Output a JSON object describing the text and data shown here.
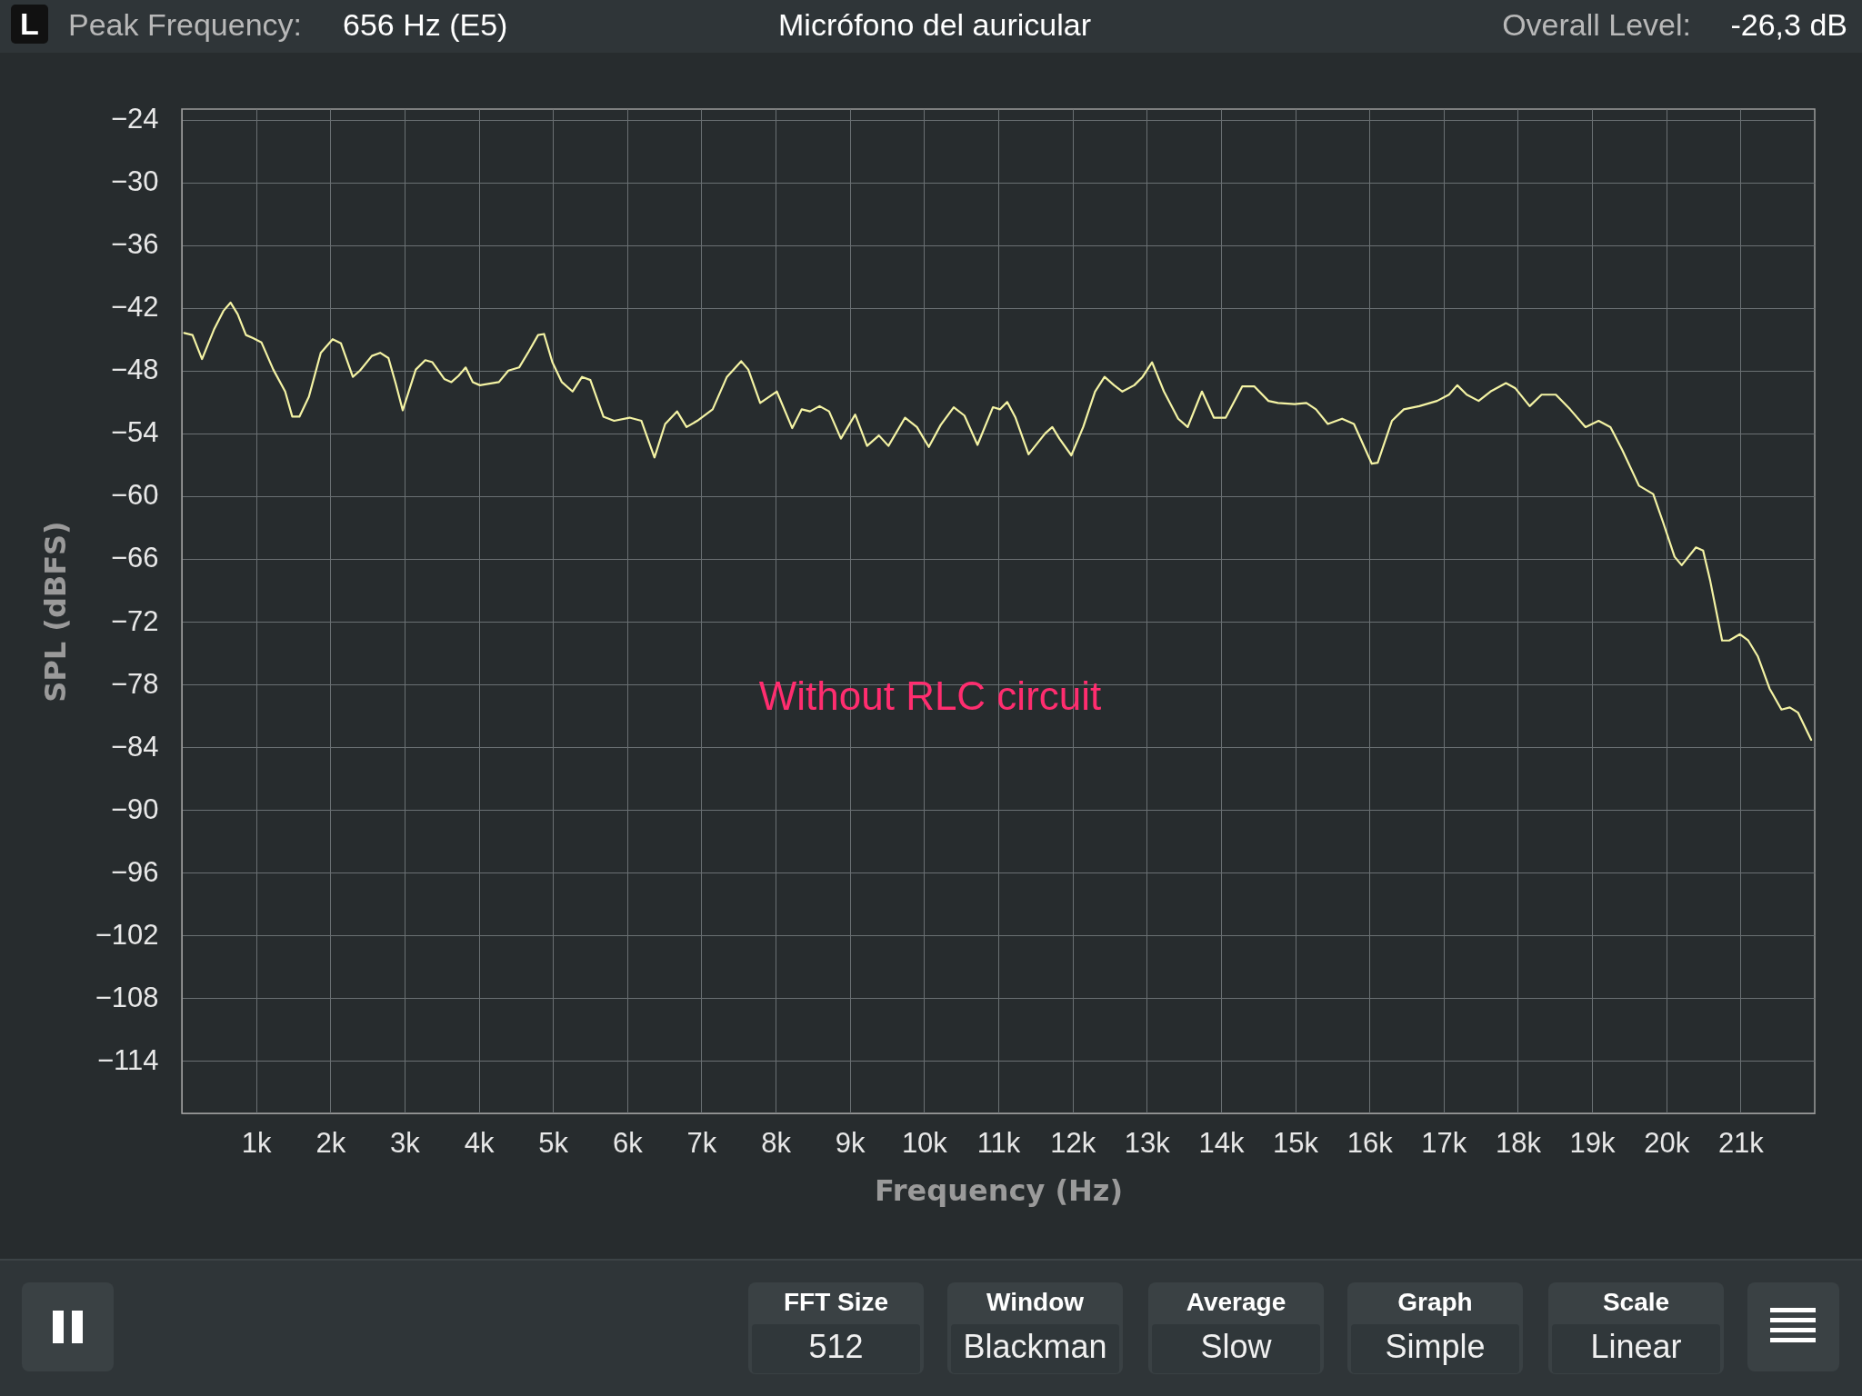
{
  "chart_data": {
    "type": "line",
    "title": "Micrófono del auricular",
    "xlabel": "Frequency (Hz)",
    "ylabel": "SPL (dBFS)",
    "annotations": [
      "L",
      "Peak Frequency:",
      "656 Hz (E5)",
      "Overall Level:",
      "-26,3 dB",
      "Without RLC circuit",
      "FFT Size",
      "512",
      "Window",
      "Blackman",
      "Average",
      "Slow",
      "Graph",
      "Simple",
      "Scale",
      "Linear"
    ],
    "x": [
      32,
      144,
      272,
      432,
      560,
      656,
      752,
      864,
      960,
      1072,
      1232,
      1392,
      1488,
      1584,
      1712,
      1872,
      2032,
      2144,
      2304,
      2400,
      2560,
      2672,
      2784,
      2880,
      2976,
      3152,
      3280,
      3376,
      3536,
      3632,
      3728,
      3824,
      3920,
      4016,
      4272,
      4400,
      4544,
      4672,
      4800,
      4880,
      4992,
      5120,
      5264,
      5392,
      5504,
      5680,
      5824,
      6032,
      6192,
      6368,
      6512,
      6672,
      6800,
      6944,
      7152,
      7344,
      7536,
      7632,
      7792,
      8016,
      8224,
      8352,
      8464,
      8592,
      8720,
      8880,
      9072,
      9232,
      9392,
      9520,
      9744,
      9904,
      10064,
      10224,
      10400,
      10544,
      10720,
      10928,
      11024,
      11120,
      11232,
      11408,
      11632,
      11728,
      11824,
      11984,
      12144,
      12304,
      12432,
      12560,
      12672,
      12832,
      12944,
      13072,
      13232,
      13424,
      13552,
      13744,
      13904,
      14064,
      14288,
      14448,
      14640,
      14768,
      14992,
      15152,
      15280,
      15440,
      15632,
      15792,
      16032,
      16112,
      16304,
      16464,
      16672,
      16912,
      17072,
      17184,
      17312,
      17472,
      17632,
      17840,
      17968,
      18160,
      18320,
      18512,
      18704,
      18912,
      19088,
      19248,
      19408,
      19632,
      19824,
      19952,
      20112,
      20208,
      20400,
      20496,
      20592,
      20752,
      20848,
      20992,
      21104,
      21232,
      21392,
      21552,
      21664,
      21776,
      21952
    ],
    "series": [
      {
        "color": "#f4f3a4",
        "values": [
          -44.4,
          -44.6,
          -46.9,
          -44.1,
          -42.3,
          -41.5,
          -42.6,
          -44.6,
          -44.9,
          -45.3,
          -47.9,
          -50.0,
          -52.4,
          -52.4,
          -50.5,
          -46.3,
          -45.0,
          -45.4,
          -48.6,
          -48.0,
          -46.6,
          -46.3,
          -46.8,
          -49.2,
          -51.8,
          -47.9,
          -47.0,
          -47.2,
          -48.8,
          -49.1,
          -48.5,
          -47.7,
          -49.1,
          -49.4,
          -49.1,
          -48.0,
          -47.7,
          -46.2,
          -44.6,
          -44.5,
          -47.2,
          -49.1,
          -50.0,
          -48.6,
          -48.9,
          -52.4,
          -52.8,
          -52.5,
          -52.8,
          -56.3,
          -53.1,
          -51.9,
          -53.4,
          -52.8,
          -51.7,
          -48.6,
          -47.1,
          -47.9,
          -51.1,
          -50.0,
          -53.5,
          -51.7,
          -51.9,
          -51.4,
          -51.9,
          -54.5,
          -52.2,
          -55.2,
          -54.2,
          -55.2,
          -52.5,
          -53.4,
          -55.3,
          -53.2,
          -51.5,
          -52.3,
          -55.1,
          -51.5,
          -51.7,
          -51.0,
          -52.5,
          -56.0,
          -54.0,
          -53.4,
          -54.5,
          -56.1,
          -53.4,
          -50.0,
          -48.6,
          -49.4,
          -50.0,
          -49.4,
          -48.6,
          -47.2,
          -50.0,
          -52.6,
          -53.4,
          -50.0,
          -52.5,
          -52.5,
          -49.5,
          -49.5,
          -50.9,
          -51.1,
          -51.2,
          -51.1,
          -51.7,
          -53.1,
          -52.6,
          -53.1,
          -56.9,
          -56.8,
          -52.8,
          -51.7,
          -51.4,
          -50.9,
          -50.3,
          -49.4,
          -50.3,
          -50.9,
          -50.0,
          -49.2,
          -49.7,
          -51.4,
          -50.3,
          -50.3,
          -51.7,
          -53.4,
          -52.8,
          -53.4,
          -55.6,
          -59.0,
          -59.8,
          -62.4,
          -65.8,
          -66.6,
          -64.9,
          -65.2,
          -68.1,
          -73.8,
          -73.8,
          -73.2,
          -73.8,
          -75.3,
          -78.4,
          -80.4,
          -80.2,
          -80.7,
          -83.3
        ]
      }
    ],
    "xlim": [
      0,
      22000
    ],
    "xticks": [
      {
        "value": 1000,
        "label": "1k"
      },
      {
        "value": 2000,
        "label": "2k"
      },
      {
        "value": 3000,
        "label": "3k"
      },
      {
        "value": 4000,
        "label": "4k"
      },
      {
        "value": 5000,
        "label": "5k"
      },
      {
        "value": 6000,
        "label": "6k"
      },
      {
        "value": 7000,
        "label": "7k"
      },
      {
        "value": 8000,
        "label": "8k"
      },
      {
        "value": 9000,
        "label": "9k"
      },
      {
        "value": 10000,
        "label": "10k"
      },
      {
        "value": 11000,
        "label": "11k"
      },
      {
        "value": 12000,
        "label": "12k"
      },
      {
        "value": 13000,
        "label": "13k"
      },
      {
        "value": 14000,
        "label": "14k"
      },
      {
        "value": 15000,
        "label": "15k"
      },
      {
        "value": 16000,
        "label": "16k"
      },
      {
        "value": 17000,
        "label": "17k"
      },
      {
        "value": 18000,
        "label": "18k"
      },
      {
        "value": 19000,
        "label": "19k"
      },
      {
        "value": 20000,
        "label": "20k"
      },
      {
        "value": 21000,
        "label": "21k"
      }
    ],
    "ylim": [
      -119,
      -23
    ],
    "yticks": [
      -24,
      -30,
      -36,
      -42,
      -48,
      -54,
      -60,
      -66,
      -72,
      -78,
      -84,
      -90,
      -96,
      -102,
      -108,
      -114
    ],
    "grid": true
  }
}
